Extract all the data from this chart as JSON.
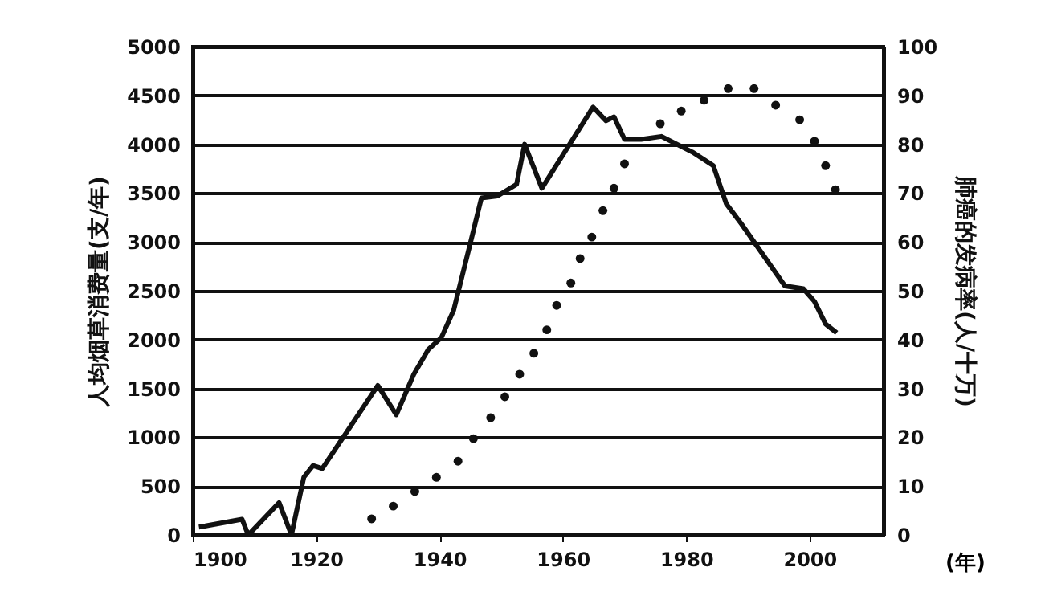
{
  "chart_data": {
    "type": "line",
    "xlabel": "(年)",
    "ylabel": "人均烟草消费量(支/年)",
    "y2label": "肺癌的发病率(人/十万)",
    "xlim": [
      1900,
      2012
    ],
    "xticks": [
      1900,
      1920,
      1940,
      1960,
      1980,
      2000
    ],
    "ylim": [
      0,
      5000
    ],
    "yticks": [
      0,
      500,
      1000,
      1500,
      2000,
      2500,
      3000,
      3500,
      4000,
      4500,
      5000
    ],
    "y2lim": [
      0,
      100
    ],
    "y2ticks": [
      0,
      10,
      20,
      30,
      40,
      50,
      60,
      70,
      80,
      90,
      100
    ],
    "grid": "y",
    "series": [
      {
        "color": "#111111",
        "line_style": "solid",
        "x": [
          1901,
          1908,
          1909,
          1914,
          1916,
          1918,
          1919.5,
          1921,
          1930,
          1933,
          1935.8,
          1938.2,
          1940.3,
          1942.3,
          1944.9,
          1946.8,
          1949.4,
          1952.5,
          1953.8,
          1956.6,
          1964.9,
          1967,
          1968.3,
          1970,
          1972.7,
          1976,
          1981,
          1984.4,
          1986.5,
          1989,
          1996,
          1999,
          2000.8,
          2002.6,
          2004.4
        ],
        "values": [
          80,
          160,
          0,
          330,
          0,
          590,
          710,
          680,
          1530,
          1230,
          1640,
          1900,
          2020,
          2300,
          2960,
          3450,
          3470,
          3590,
          4000,
          3550,
          4380,
          4240,
          4280,
          4050,
          4050,
          4080,
          3920,
          3780,
          3390,
          3180,
          2550,
          2520,
          2390,
          2160,
          2070
        ]
      },
      {
        "type": "scatter",
        "axis": "y2",
        "color": "#111111",
        "marker": "circle",
        "x": [
          1929,
          1932.5,
          1936,
          1939.5,
          1943,
          1945.5,
          1948.3,
          1950.6,
          1953,
          1955.3,
          1957.4,
          1959,
          1961.3,
          1962.8,
          1964.7,
          1966.5,
          1968.3,
          1970,
          1975.8,
          1979.2,
          1982.9,
          1986.8,
          1991,
          1994.5,
          1998.4,
          2000.8,
          2002.6,
          2004.2
        ],
        "values": [
          3.3,
          5.9,
          8.9,
          11.8,
          15.1,
          19.7,
          24,
          28.3,
          32.9,
          37.2,
          42,
          47,
          51.6,
          56.6,
          61,
          66.4,
          71,
          76,
          84.2,
          86.8,
          89,
          91.4,
          91.4,
          88,
          85,
          80.6,
          75.6,
          70.7
        ]
      }
    ]
  }
}
